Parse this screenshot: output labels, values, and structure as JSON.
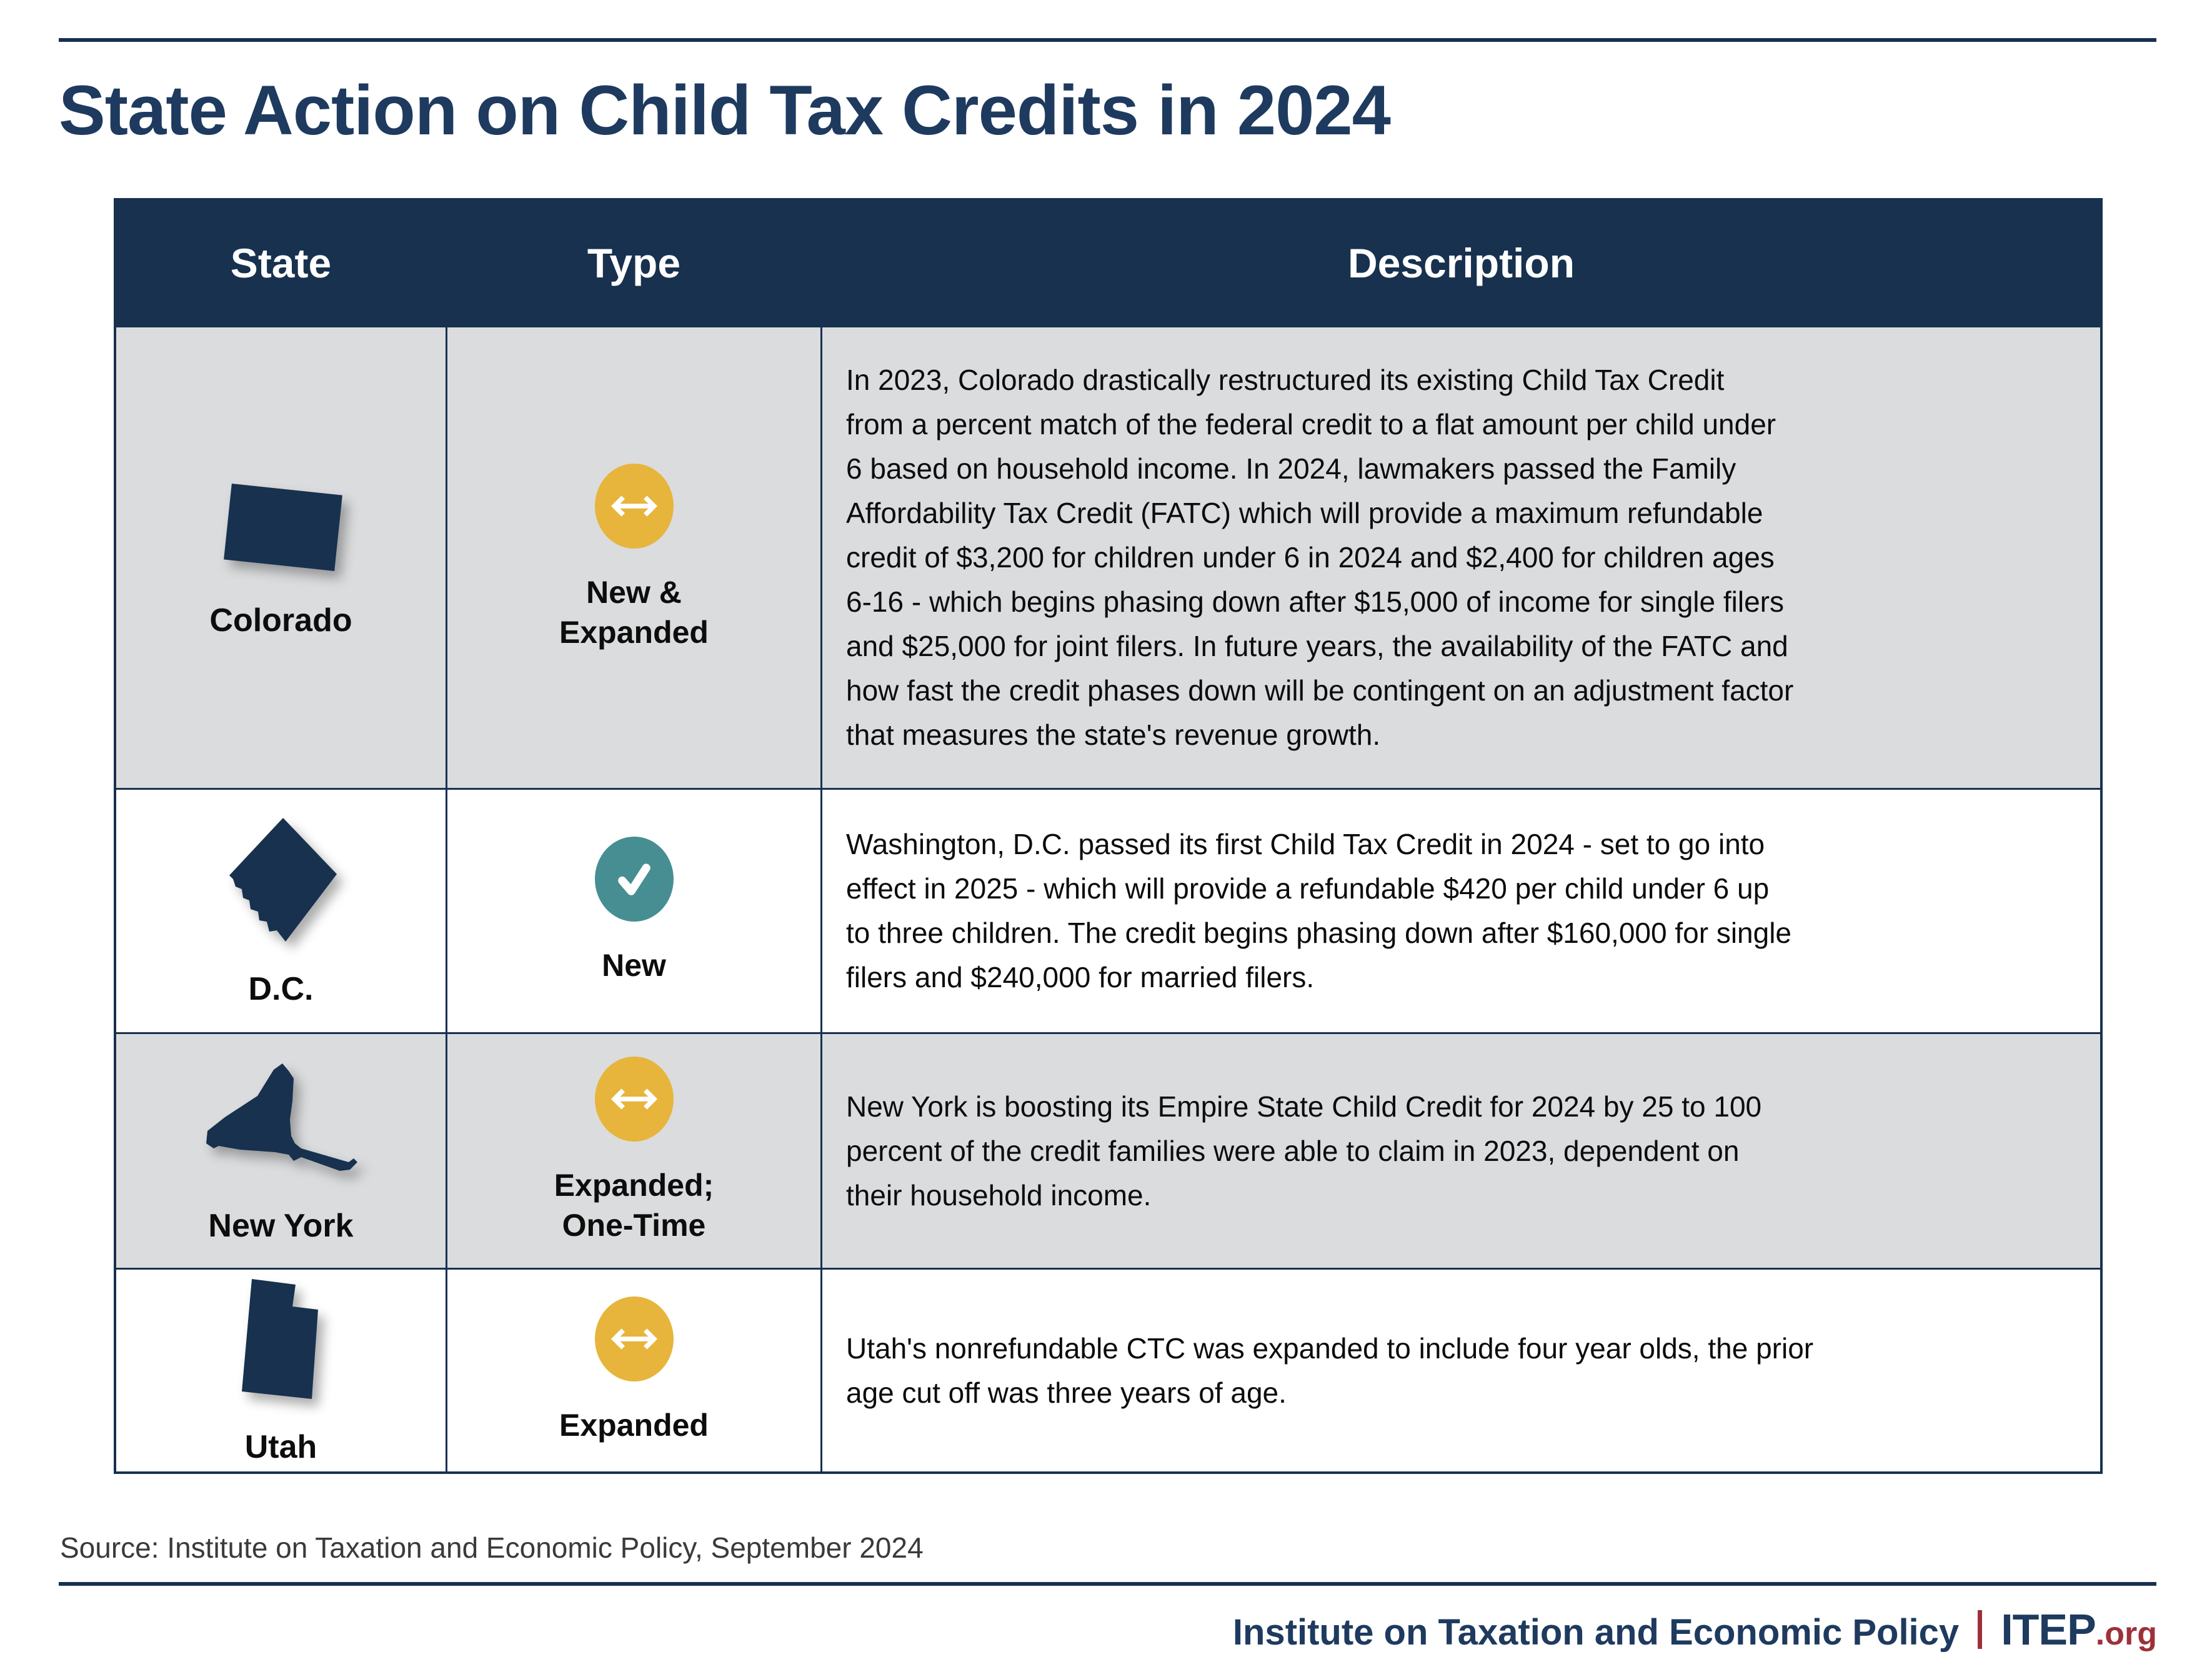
{
  "title": "State Action on Child Tax Credits in 2024",
  "colors": {
    "navy_dark": "#17314f",
    "navy_title": "#1e3a5f",
    "navy_shape": "#17314f",
    "row_gray": "#dbdcde",
    "yellow": "#e7b53c",
    "teal": "#478e93",
    "red": "#9e3138"
  },
  "table": {
    "headers": [
      "State",
      "Type",
      "Description"
    ],
    "rows": [
      {
        "state": "Colorado",
        "shape_key": "colorado",
        "type": "New &\nExpanded",
        "type_icon": "double-arrow-expand-icon",
        "icon_color": "#e7b53c",
        "description": "In 2023, Colorado drastically restructured its existing Child Tax Credit\nfrom a percent match of the federal credit to a flat amount per child under\n6 based on household income. In 2024, lawmakers passed the Family\nAffordability Tax Credit (FATC) which will provide a maximum refundable\ncredit of $3,200 for children under 6 in 2024 and $2,400 for children ages\n6-16 - which begins phasing down after $15,000 of income for single filers\nand $25,000 for joint filers. In future years, the availability of the FATC and\nhow fast the credit phases down will be contingent on an adjustment factor\nthat measures the state's revenue growth."
      },
      {
        "state": "D.C.",
        "shape_key": "dc",
        "type": "New",
        "type_icon": "checkmark-new-icon",
        "icon_color": "#478e93",
        "description": "Washington, D.C. passed its first Child Tax Credit in 2024 - set to go into\neffect in 2025 - which will provide a refundable $420 per child under 6 up\nto three children. The credit begins phasing down after $160,000 for single\nfilers and $240,000 for married filers."
      },
      {
        "state": "New York",
        "shape_key": "new-york",
        "type": "Expanded;\nOne-Time",
        "type_icon": "double-arrow-expand-icon",
        "icon_color": "#e7b53c",
        "description": "New York is boosting its Empire State Child Credit for 2024 by 25 to 100\npercent of the credit families were able to claim in 2023, dependent on\ntheir household income."
      },
      {
        "state": "Utah",
        "shape_key": "utah",
        "type": "Expanded",
        "type_icon": "double-arrow-expand-icon",
        "icon_color": "#e7b53c",
        "description": "Utah's nonrefundable CTC was expanded to include four year olds, the prior\nage cut off was three years of age."
      }
    ]
  },
  "source": "Source: Institute on Taxation and Economic Policy, September 2024",
  "footer": {
    "org": "Institute on Taxation and Economic Policy",
    "brand": "ITEP",
    "brand_suffix": ".org"
  }
}
